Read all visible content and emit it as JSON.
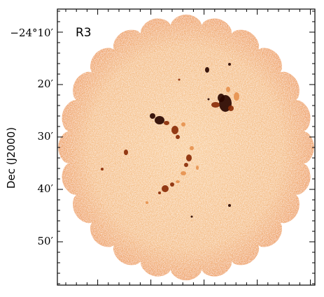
{
  "figure": {
    "panel_label": "R3",
    "y_axis_label": "Dec (J2000)",
    "y_tick_labels": [
      "−24°10′",
      "20′",
      "30′",
      "40′",
      "50′"
    ]
  },
  "colors": {
    "background_map": "#f7c58f",
    "pale": "#fff4e6",
    "mid": "#e69350",
    "dark": "#8a2c08",
    "darkest": "#2a0600"
  }
}
